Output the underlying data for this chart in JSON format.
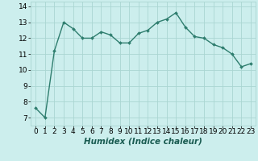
{
  "x": [
    0,
    1,
    2,
    3,
    4,
    5,
    6,
    7,
    8,
    9,
    10,
    11,
    12,
    13,
    14,
    15,
    16,
    17,
    18,
    19,
    20,
    21,
    22,
    23
  ],
  "y": [
    7.6,
    7.0,
    11.2,
    13.0,
    12.6,
    12.0,
    12.0,
    12.4,
    12.2,
    11.7,
    11.7,
    12.3,
    12.5,
    13.0,
    13.2,
    13.6,
    12.7,
    12.1,
    12.0,
    11.6,
    11.4,
    11.0,
    10.2,
    10.4
  ],
  "line_color": "#2e7d6e",
  "marker": "D",
  "marker_size": 2.0,
  "linewidth": 1.0,
  "bg_color": "#cceeed",
  "grid_color": "#aad6d2",
  "xlabel": "Humidex (Indice chaleur)",
  "xlim": [
    -0.5,
    23.5
  ],
  "ylim": [
    6.5,
    14.3
  ],
  "yticks": [
    7,
    8,
    9,
    10,
    11,
    12,
    13,
    14
  ],
  "xtick_labels": [
    "0",
    "1",
    "2",
    "3",
    "4",
    "5",
    "6",
    "7",
    "8",
    "9",
    "10",
    "11",
    "12",
    "13",
    "14",
    "15",
    "16",
    "17",
    "18",
    "19",
    "20",
    "21",
    "22",
    "23"
  ],
  "xlabel_fontsize": 7.5,
  "tick_fontsize": 6.5
}
